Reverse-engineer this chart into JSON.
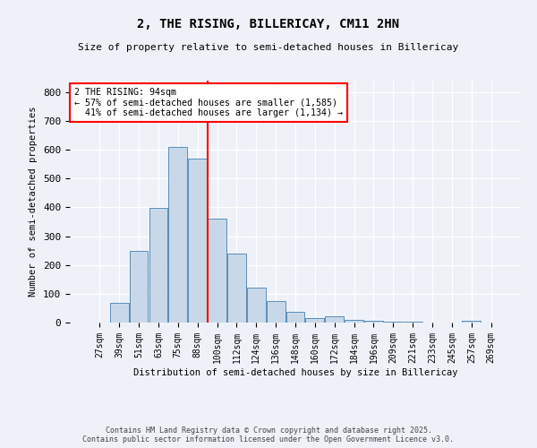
{
  "title1": "2, THE RISING, BILLERICAY, CM11 2HN",
  "title2": "Size of property relative to semi-detached houses in Billericay",
  "xlabel": "Distribution of semi-detached houses by size in Billericay",
  "ylabel": "Number of semi-detached properties",
  "property_label": "2 THE RISING: 94sqm",
  "pct_smaller": 57,
  "pct_larger": 41,
  "n_smaller": "1,585",
  "n_larger": "1,134",
  "bin_labels": [
    "27sqm",
    "39sqm",
    "51sqm",
    "63sqm",
    "75sqm",
    "88sqm",
    "100sqm",
    "112sqm",
    "124sqm",
    "136sqm",
    "148sqm",
    "160sqm",
    "172sqm",
    "184sqm",
    "196sqm",
    "209sqm",
    "221sqm",
    "233sqm",
    "245sqm",
    "257sqm",
    "269sqm"
  ],
  "bar_values": [
    0,
    68,
    249,
    397,
    609,
    570,
    362,
    239,
    121,
    74,
    36,
    15,
    22,
    10,
    5,
    3,
    2,
    1,
    0,
    5,
    1
  ],
  "bar_color": "#c8d8e8",
  "bar_edge_color": "#5b8db8",
  "vline_color": "red",
  "ylim": [
    0,
    840
  ],
  "yticks": [
    0,
    100,
    200,
    300,
    400,
    500,
    600,
    700,
    800
  ],
  "bg_color": "#eef2f8",
  "footer1": "Contains HM Land Registry data © Crown copyright and database right 2025.",
  "footer2": "Contains public sector information licensed under the Open Government Licence v3.0."
}
